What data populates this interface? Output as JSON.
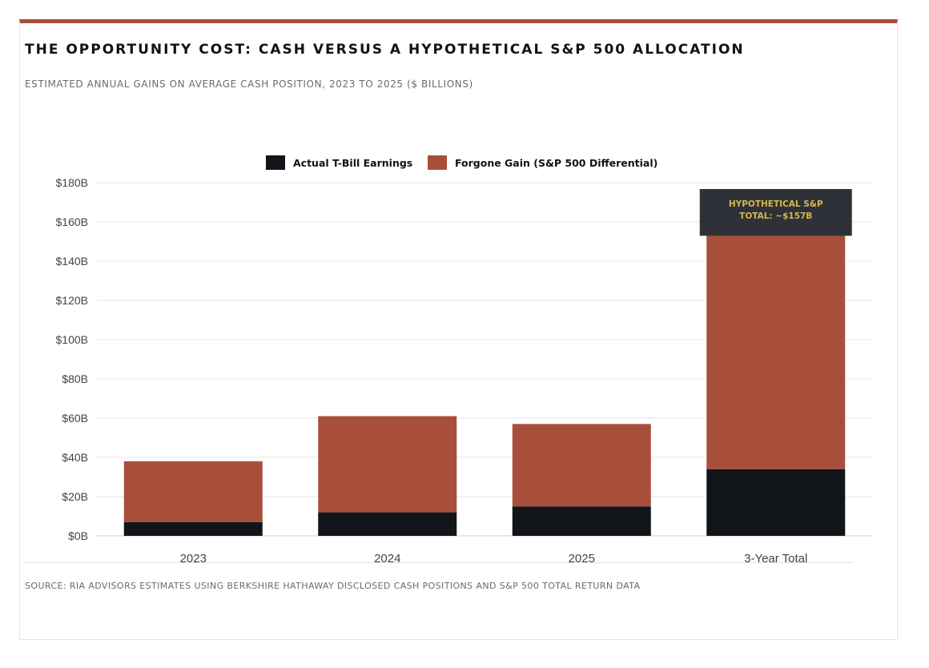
{
  "chart_data": {
    "type": "bar",
    "stacked": true,
    "title": "THE OPPORTUNITY COST: CASH VERSUS A HYPOTHETICAL S&P 500 ALLOCATION",
    "subtitle": "ESTIMATED ANNUAL GAINS ON AVERAGE CASH POSITION, 2023 TO 2025 ($ BILLIONS)",
    "categories": [
      "2023",
      "2024",
      "2025",
      "3-Year Total"
    ],
    "series": [
      {
        "name": "Actual T-Bill Earnings",
        "values": [
          7,
          12,
          15,
          34
        ],
        "color": "#111418"
      },
      {
        "name": "Forgone Gain (S&P 500 Differential)",
        "values": [
          31,
          49,
          42,
          123
        ],
        "color": "#a84f3c"
      }
    ],
    "yticks": [
      "$0B",
      "$20B",
      "$40B",
      "$60B",
      "$80B",
      "$100B",
      "$120B",
      "$140B",
      "$160B",
      "$180B"
    ],
    "ylim": [
      0,
      180
    ],
    "grid": true,
    "legend_position": "top-center",
    "annotation": {
      "lines": [
        "HYPOTHETICAL S&P",
        "TOTAL: ~$157B"
      ],
      "category": "3-Year Total",
      "value": 157,
      "background": "#2e3138",
      "text_color": "#d9b84a"
    },
    "source": "SOURCE: RIA ADVISORS ESTIMATES USING BERKSHIRE HATHAWAY DISCLOSED CASH POSITIONS AND S&P 500 TOTAL RETURN DATA"
  },
  "colors": {
    "accent": "#a84f3c",
    "dark": "#111418",
    "grid": "#e6e6e6"
  }
}
